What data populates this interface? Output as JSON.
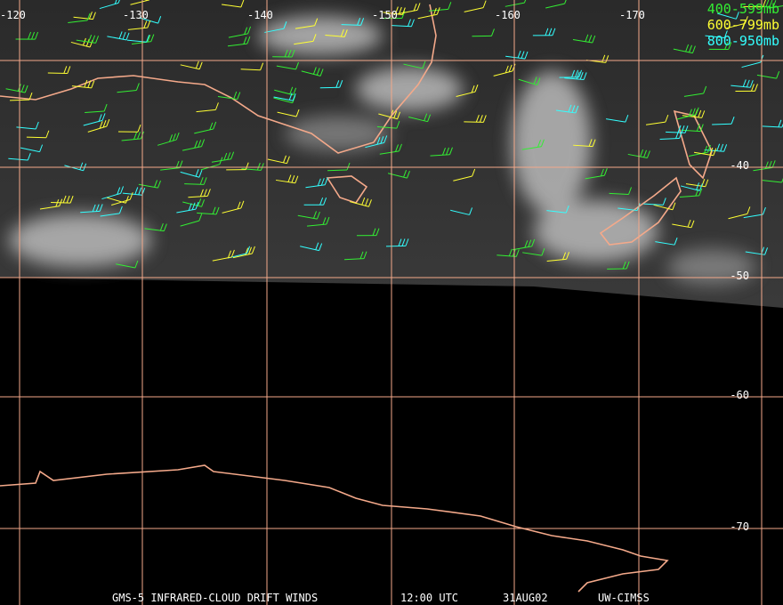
{
  "longitude_labels": [
    "-120",
    "-130",
    "-140",
    "-150",
    "-160",
    "-170"
  ],
  "latitude_labels": [
    "-40",
    "-50",
    "-60",
    "-70"
  ],
  "legend": [
    "400-599mb",
    "600-799mb",
    "800-950mb"
  ],
  "footer": {
    "source": "GMS-5 INFRARED-CLOUD DRIFT WINDS",
    "time": "12:00 UTC",
    "date": "31AUG02",
    "credit": "UW-CIMSS"
  }
}
